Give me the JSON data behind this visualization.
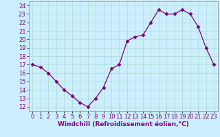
{
  "x": [
    0,
    1,
    2,
    3,
    4,
    5,
    6,
    7,
    8,
    9,
    10,
    11,
    12,
    13,
    14,
    15,
    16,
    17,
    18,
    19,
    20,
    21,
    22,
    23
  ],
  "y": [
    17.0,
    16.7,
    16.0,
    15.0,
    14.0,
    13.3,
    12.5,
    12.0,
    13.0,
    14.3,
    16.5,
    17.0,
    19.8,
    20.3,
    20.5,
    22.0,
    23.5,
    23.0,
    23.0,
    23.5,
    23.0,
    21.5,
    19.0,
    17.0
  ],
  "line_color": "#7b007b",
  "marker": "D",
  "marker_size": 2.5,
  "background_color": "#cceeff",
  "grid_color": "#aaddcc",
  "xlabel": "Windchill (Refroidissement éolien,°C)",
  "xlabel_color": "#7b007b",
  "ylabel_ticks": [
    12,
    13,
    14,
    15,
    16,
    17,
    18,
    19,
    20,
    21,
    22,
    23,
    24
  ],
  "ylim": [
    11.5,
    24.5
  ],
  "xlim": [
    -0.5,
    23.5
  ],
  "tick_label_color": "#7b007b",
  "xlabel_fontsize": 6.5,
  "tick_fontsize": 6.0,
  "linewidth": 0.9
}
